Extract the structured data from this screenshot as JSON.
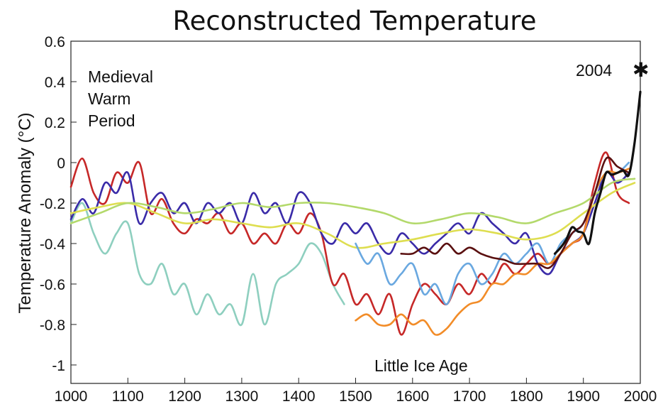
{
  "chart_data": {
    "type": "line",
    "title": "Reconstructed Temperature",
    "xlabel": "",
    "ylabel": "Temperature Anomaly (°C)",
    "xlim": [
      1000,
      2000
    ],
    "ylim": [
      -1.1,
      0.6
    ],
    "x_ticks": [
      "1000",
      "1100",
      "1200",
      "1300",
      "1400",
      "1500",
      "1600",
      "1700",
      "1800",
      "1900",
      "2000"
    ],
    "y_ticks": [
      "0.6",
      "0.4",
      "0.2",
      "0",
      "-0.2",
      "-0.4",
      "-0.6",
      "-0.8",
      "-1"
    ],
    "grid": false,
    "legend": "none",
    "annotations": {
      "medieval": [
        "Medieval",
        "Warm",
        "Period"
      ],
      "little_ice_age": "Little Ice Age",
      "year_2004": "2004",
      "star": "✱"
    },
    "series": [
      {
        "color": "#8ecfbf",
        "x": [
          1000,
          1020,
          1040,
          1060,
          1080,
          1100,
          1120,
          1140,
          1160,
          1180,
          1200,
          1220,
          1240,
          1260,
          1280,
          1300,
          1320,
          1340,
          1360,
          1380,
          1400,
          1420,
          1440,
          1460,
          1480
        ],
        "y": [
          -0.3,
          -0.2,
          -0.35,
          -0.45,
          -0.35,
          -0.3,
          -0.55,
          -0.6,
          -0.5,
          -0.65,
          -0.6,
          -0.75,
          -0.65,
          -0.75,
          -0.7,
          -0.8,
          -0.55,
          -0.8,
          -0.6,
          -0.55,
          -0.5,
          -0.4,
          -0.45,
          -0.6,
          -0.7
        ]
      },
      {
        "color": "#c62828",
        "x": [
          1000,
          1020,
          1040,
          1060,
          1080,
          1100,
          1120,
          1140,
          1160,
          1180,
          1200,
          1220,
          1240,
          1260,
          1280,
          1300,
          1320,
          1340,
          1360,
          1380,
          1400,
          1420,
          1440,
          1460,
          1480,
          1500,
          1520,
          1540,
          1560,
          1580,
          1600,
          1620,
          1640,
          1660,
          1680,
          1700,
          1720,
          1740,
          1760,
          1780,
          1800,
          1820,
          1840,
          1860,
          1880,
          1900,
          1920,
          1940,
          1960,
          1980
        ],
        "y": [
          -0.12,
          0.02,
          -0.15,
          -0.2,
          -0.05,
          -0.1,
          0.0,
          -0.25,
          -0.18,
          -0.3,
          -0.35,
          -0.28,
          -0.3,
          -0.25,
          -0.35,
          -0.3,
          -0.4,
          -0.35,
          -0.4,
          -0.3,
          -0.35,
          -0.25,
          -0.35,
          -0.6,
          -0.55,
          -0.7,
          -0.65,
          -0.75,
          -0.65,
          -0.85,
          -0.7,
          -0.6,
          -0.65,
          -0.7,
          -0.6,
          -0.65,
          -0.55,
          -0.6,
          -0.5,
          -0.55,
          -0.5,
          -0.45,
          -0.5,
          -0.45,
          -0.4,
          -0.35,
          -0.1,
          0.05,
          -0.15,
          -0.2
        ]
      },
      {
        "color": "#3a2ba8",
        "x": [
          1000,
          1020,
          1040,
          1060,
          1080,
          1100,
          1120,
          1140,
          1160,
          1180,
          1200,
          1220,
          1240,
          1260,
          1280,
          1300,
          1320,
          1340,
          1360,
          1380,
          1400,
          1420,
          1440,
          1460,
          1480,
          1500,
          1520,
          1540,
          1560,
          1580,
          1600,
          1620,
          1640,
          1660,
          1680,
          1700,
          1720,
          1740,
          1760,
          1780,
          1800,
          1820,
          1840,
          1860,
          1880,
          1900,
          1920,
          1940,
          1960,
          1980
        ],
        "y": [
          -0.28,
          -0.18,
          -0.25,
          -0.1,
          -0.15,
          -0.05,
          -0.3,
          -0.2,
          -0.15,
          -0.25,
          -0.2,
          -0.3,
          -0.2,
          -0.25,
          -0.2,
          -0.3,
          -0.15,
          -0.25,
          -0.2,
          -0.3,
          -0.15,
          -0.2,
          -0.35,
          -0.4,
          -0.3,
          -0.35,
          -0.3,
          -0.4,
          -0.45,
          -0.35,
          -0.4,
          -0.45,
          -0.4,
          -0.35,
          -0.3,
          -0.35,
          -0.25,
          -0.3,
          -0.35,
          -0.4,
          -0.35,
          -0.5,
          -0.55,
          -0.45,
          -0.4,
          -0.35,
          -0.2,
          -0.05,
          -0.1,
          -0.05
        ]
      },
      {
        "color": "#dede50",
        "x": [
          1000,
          1050,
          1100,
          1150,
          1200,
          1250,
          1300,
          1350,
          1400,
          1450,
          1500,
          1550,
          1600,
          1650,
          1700,
          1750,
          1800,
          1850,
          1900,
          1950,
          1990
        ],
        "y": [
          -0.25,
          -0.22,
          -0.2,
          -0.25,
          -0.3,
          -0.28,
          -0.3,
          -0.32,
          -0.3,
          -0.35,
          -0.42,
          -0.4,
          -0.38,
          -0.35,
          -0.33,
          -0.35,
          -0.38,
          -0.35,
          -0.25,
          -0.15,
          -0.1
        ]
      },
      {
        "color": "#b3d96b",
        "x": [
          1000,
          1050,
          1100,
          1150,
          1200,
          1250,
          1300,
          1350,
          1400,
          1450,
          1500,
          1550,
          1600,
          1650,
          1700,
          1750,
          1800,
          1850,
          1900,
          1950,
          1990
        ],
        "y": [
          -0.3,
          -0.25,
          -0.2,
          -0.22,
          -0.25,
          -0.23,
          -0.2,
          -0.22,
          -0.2,
          -0.2,
          -0.22,
          -0.25,
          -0.3,
          -0.28,
          -0.25,
          -0.27,
          -0.3,
          -0.25,
          -0.2,
          -0.1,
          -0.08
        ]
      },
      {
        "color": "#6aa8e0",
        "x": [
          1500,
          1520,
          1540,
          1560,
          1580,
          1600,
          1620,
          1640,
          1660,
          1680,
          1700,
          1720,
          1740,
          1760,
          1780,
          1800,
          1820,
          1840,
          1860,
          1880,
          1900,
          1920,
          1940,
          1960,
          1980
        ],
        "y": [
          -0.4,
          -0.5,
          -0.45,
          -0.6,
          -0.55,
          -0.5,
          -0.65,
          -0.6,
          -0.7,
          -0.55,
          -0.5,
          -0.6,
          -0.55,
          -0.45,
          -0.5,
          -0.45,
          -0.4,
          -0.5,
          -0.4,
          -0.35,
          -0.3,
          -0.15,
          -0.05,
          -0.05,
          0.0
        ]
      },
      {
        "color": "#f28c28",
        "x": [
          1500,
          1520,
          1540,
          1560,
          1580,
          1600,
          1620,
          1640,
          1660,
          1680,
          1700,
          1720,
          1740,
          1760,
          1780,
          1800,
          1820,
          1840,
          1860,
          1880,
          1900,
          1920,
          1940,
          1960,
          1980
        ],
        "y": [
          -0.78,
          -0.75,
          -0.8,
          -0.8,
          -0.75,
          -0.8,
          -0.78,
          -0.85,
          -0.82,
          -0.75,
          -0.7,
          -0.68,
          -0.6,
          -0.6,
          -0.55,
          -0.55,
          -0.5,
          -0.5,
          -0.45,
          -0.4,
          -0.35,
          -0.15,
          -0.05,
          -0.05,
          -0.03
        ]
      },
      {
        "color": "#5a1010",
        "x": [
          1580,
          1600,
          1620,
          1640,
          1660,
          1680,
          1700,
          1720,
          1740,
          1760,
          1780,
          1800,
          1820,
          1840,
          1860,
          1880,
          1900,
          1920,
          1940,
          1960,
          1980
        ],
        "y": [
          -0.45,
          -0.45,
          -0.42,
          -0.45,
          -0.4,
          -0.45,
          -0.42,
          -0.45,
          -0.47,
          -0.48,
          -0.5,
          -0.5,
          -0.5,
          -0.52,
          -0.45,
          -0.35,
          -0.3,
          -0.15,
          0.02,
          -0.02,
          -0.05
        ]
      },
      {
        "color": "#111111",
        "x": [
          1850,
          1860,
          1870,
          1880,
          1890,
          1900,
          1910,
          1920,
          1930,
          1940,
          1950,
          1960,
          1970,
          1980,
          1990,
          2000
        ],
        "y": [
          -0.45,
          -0.42,
          -0.38,
          -0.32,
          -0.34,
          -0.35,
          -0.4,
          -0.25,
          -0.15,
          -0.05,
          -0.06,
          -0.05,
          -0.04,
          -0.06,
          0.1,
          0.35
        ]
      }
    ]
  }
}
